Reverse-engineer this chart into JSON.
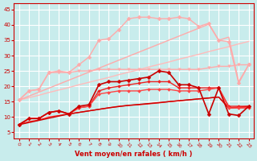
{
  "xlabel": "Vent moyen/en rafales ( km/h )",
  "background_color": "#c8ecec",
  "grid_color": "#ffffff",
  "ylim": [
    3,
    47
  ],
  "xlim": [
    -0.5,
    23.5
  ],
  "yticks": [
    5,
    10,
    15,
    20,
    25,
    30,
    35,
    40,
    45
  ],
  "x": [
    0,
    1,
    2,
    3,
    4,
    5,
    6,
    7,
    8,
    9,
    10,
    11,
    12,
    13,
    14,
    15,
    16,
    17,
    18,
    19,
    20,
    21,
    22,
    23
  ],
  "lines": [
    {
      "y": [
        15.5,
        16.3,
        17.1,
        18.0,
        18.8,
        19.6,
        20.5,
        21.3,
        22.1,
        22.9,
        23.8,
        24.6,
        25.4,
        26.3,
        27.1,
        27.9,
        28.8,
        29.6,
        30.4,
        31.3,
        32.1,
        32.9,
        33.8,
        34.6
      ],
      "color": "#ffbbbb",
      "lw": 1.0,
      "marker": null,
      "ms": 0,
      "zorder": 2
    },
    {
      "y": [
        15.5,
        16.8,
        18.1,
        19.4,
        20.7,
        22.0,
        23.3,
        24.6,
        25.9,
        27.2,
        28.5,
        29.8,
        31.1,
        32.4,
        33.7,
        35.0,
        36.3,
        37.6,
        38.9,
        40.2,
        35.0,
        36.0,
        21.5,
        27.0
      ],
      "color": "#ffaaaa",
      "lw": 1.0,
      "marker": null,
      "ms": 0,
      "zorder": 2
    },
    {
      "y": [
        15.5,
        18.5,
        19.0,
        24.5,
        25.0,
        24.5,
        27.0,
        29.5,
        35.0,
        35.5,
        38.5,
        42.0,
        42.5,
        42.5,
        42.0,
        42.0,
        42.5,
        42.0,
        39.5,
        40.5,
        35.0,
        34.5,
        21.0,
        27.0
      ],
      "color": "#ffaaaa",
      "lw": 1.0,
      "marker": "D",
      "ms": 2.5,
      "zorder": 3
    },
    {
      "y": [
        15.5,
        18.5,
        19.0,
        24.5,
        24.5,
        24.5,
        25.0,
        25.0,
        25.5,
        25.5,
        25.5,
        25.5,
        25.5,
        25.5,
        25.5,
        25.5,
        25.5,
        25.5,
        25.5,
        26.0,
        26.5,
        26.5,
        27.0,
        27.0
      ],
      "color": "#ffaaaa",
      "lw": 1.0,
      "marker": "v",
      "ms": 2.5,
      "zorder": 3
    },
    {
      "y": [
        7.5,
        9.5,
        9.5,
        11.5,
        12.0,
        11.0,
        13.5,
        14.0,
        20.5,
        21.5,
        21.5,
        22.0,
        22.5,
        23.0,
        25.0,
        24.5,
        20.5,
        20.5,
        19.5,
        11.0,
        19.5,
        11.0,
        10.5,
        13.5
      ],
      "color": "#cc0000",
      "lw": 1.2,
      "marker": "D",
      "ms": 2.5,
      "zorder": 5
    },
    {
      "y": [
        7.5,
        9.5,
        9.5,
        11.5,
        12.0,
        11.0,
        13.0,
        13.5,
        18.5,
        19.5,
        20.0,
        20.5,
        21.0,
        21.5,
        21.5,
        21.5,
        19.5,
        19.5,
        19.5,
        19.5,
        19.5,
        13.5,
        13.5,
        13.5
      ],
      "color": "#ee2222",
      "lw": 1.0,
      "marker": "D",
      "ms": 2.0,
      "zorder": 4
    },
    {
      "y": [
        7.5,
        9.5,
        9.5,
        11.5,
        12.0,
        11.0,
        13.0,
        13.5,
        17.5,
        18.0,
        18.5,
        18.5,
        18.5,
        19.0,
        19.0,
        19.0,
        18.5,
        18.5,
        18.5,
        19.0,
        19.5,
        13.0,
        13.0,
        13.0
      ],
      "color": "#ff4444",
      "lw": 1.0,
      "marker": "D",
      "ms": 2.0,
      "zorder": 4
    },
    {
      "y": [
        7.5,
        8.5,
        9.0,
        10.0,
        10.5,
        11.0,
        11.5,
        12.0,
        12.5,
        13.0,
        13.5,
        13.8,
        14.0,
        14.3,
        14.6,
        15.0,
        15.3,
        15.6,
        15.9,
        16.2,
        16.5,
        13.0,
        13.0,
        13.0
      ],
      "color": "#ff2222",
      "lw": 1.0,
      "marker": null,
      "ms": 0,
      "zorder": 3
    },
    {
      "y": [
        7.5,
        8.2,
        8.9,
        9.6,
        10.3,
        11.0,
        11.5,
        12.0,
        12.5,
        13.0,
        13.4,
        13.8,
        14.1,
        14.4,
        14.7,
        15.0,
        15.3,
        15.6,
        15.9,
        16.2,
        16.5,
        13.0,
        13.2,
        13.5
      ],
      "color": "#cc0000",
      "lw": 1.0,
      "marker": null,
      "ms": 0,
      "zorder": 3
    }
  ]
}
